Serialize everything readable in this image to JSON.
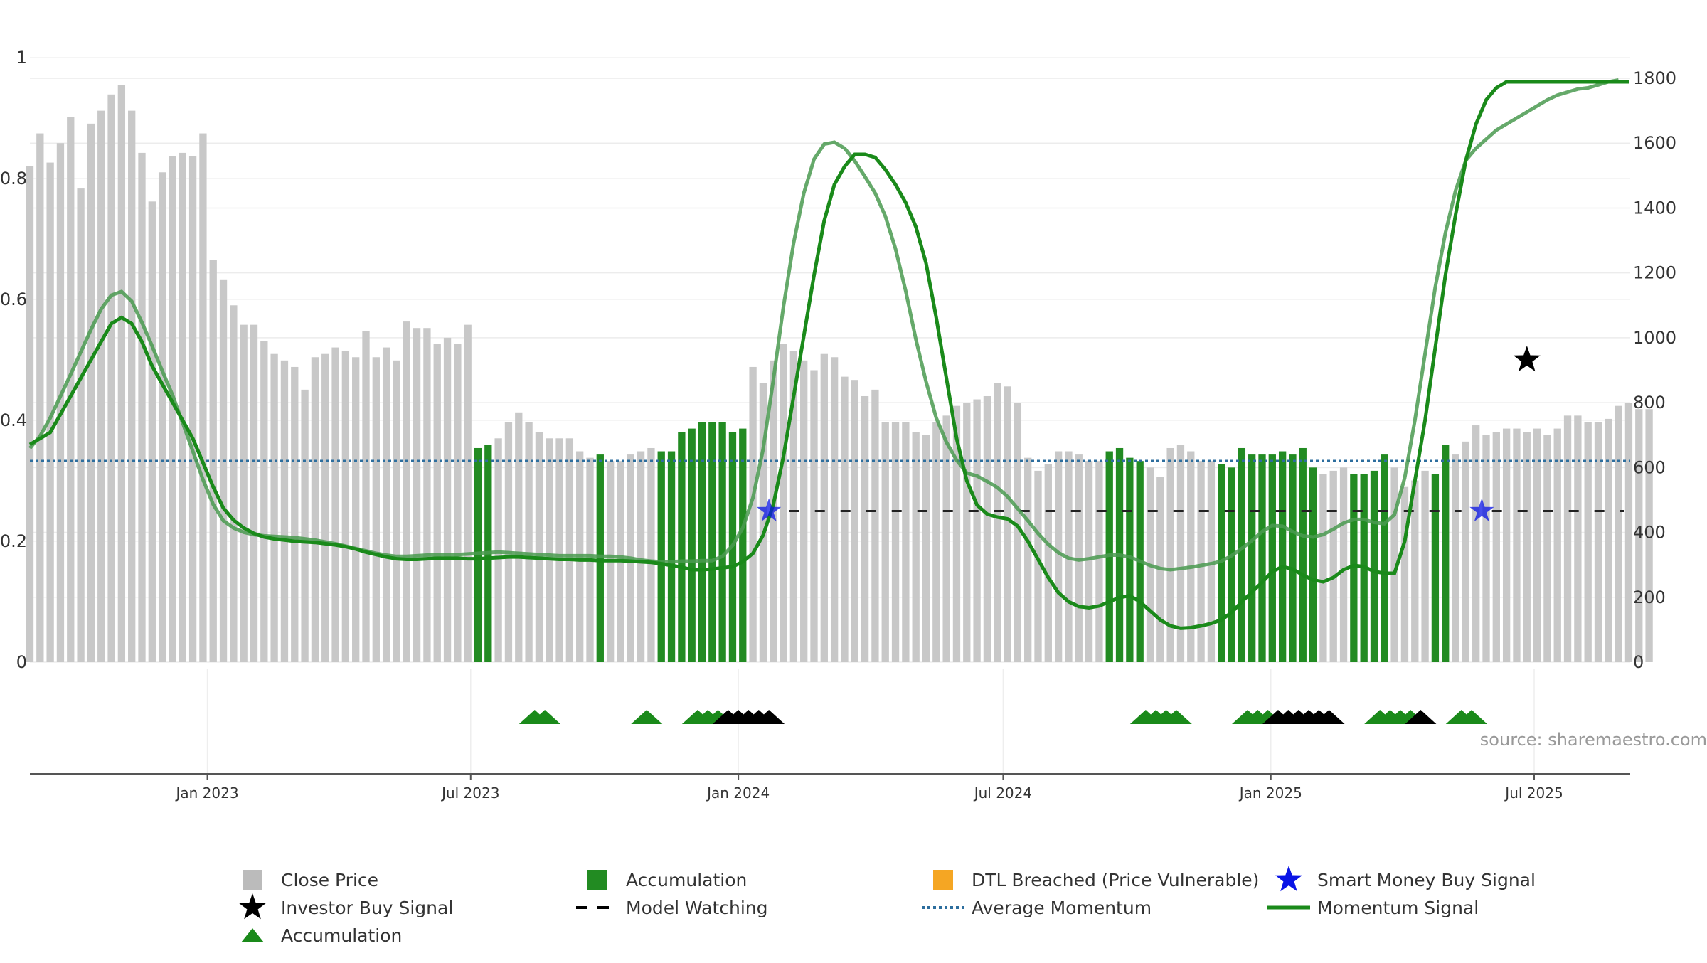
{
  "chart_data": {
    "type": "bar",
    "source_note": "source: sharemaestro.com",
    "left_axis": {
      "ticks": [
        0,
        0.2,
        0.4,
        0.6,
        0.8,
        1
      ],
      "labels": [
        "0",
        "0.2",
        "0.4",
        "0.6",
        "0.8",
        "1"
      ],
      "range": [
        0,
        1
      ]
    },
    "right_axis": {
      "ticks": [
        0,
        200,
        400,
        600,
        800,
        1000,
        1200,
        1400,
        1600,
        1800
      ],
      "labels": [
        "0",
        "200",
        "400",
        "600",
        "800",
        "1000",
        "1200",
        "1400",
        "1600",
        "1800"
      ],
      "range": [
        0,
        1800
      ]
    },
    "x_axis": {
      "start": "2022-09-01",
      "end": "2025-09-05",
      "ticks": [
        {
          "date": "2023-01-01",
          "label": "Jan 2023"
        },
        {
          "date": "2023-07-01",
          "label": "Jul 2023"
        },
        {
          "date": "2024-01-01",
          "label": "Jan 2024"
        },
        {
          "date": "2024-07-01",
          "label": "Jul 2024"
        },
        {
          "date": "2025-01-01",
          "label": "Jan 2025"
        },
        {
          "date": "2025-07-01",
          "label": "Jul 2025"
        }
      ]
    },
    "grid": true,
    "average_momentum": 0.333,
    "model_watching_level": 0.25,
    "weekly": {
      "start_date": "2022-09-01",
      "close": [
        1530,
        1630,
        1540,
        1600,
        1680,
        1460,
        1660,
        1700,
        1750,
        1780,
        1700,
        1570,
        1420,
        1510,
        1560,
        1570,
        1560,
        1630,
        1240,
        1180,
        1100,
        1040,
        1040,
        990,
        950,
        930,
        910,
        840,
        940,
        950,
        970,
        960,
        940,
        1020,
        940,
        970,
        930,
        1050,
        1030,
        1030,
        980,
        1000,
        980,
        1040,
        660,
        670,
        690,
        740,
        770,
        740,
        710,
        690,
        690,
        690,
        650,
        630,
        640,
        620,
        620,
        640,
        650,
        660,
        650,
        650,
        710,
        720,
        740,
        740,
        740,
        710,
        720,
        910,
        860,
        930,
        980,
        960,
        930,
        900,
        950,
        940,
        880,
        870,
        820,
        840,
        740,
        740,
        740,
        710,
        700,
        740,
        760,
        790,
        800,
        810,
        820,
        860,
        850,
        800,
        630,
        590,
        610,
        650,
        650,
        640,
        620,
        620,
        650,
        660,
        630,
        620,
        600,
        570,
        660,
        670,
        650,
        620,
        620,
        610,
        600,
        660,
        640,
        640,
        640,
        650,
        640,
        660,
        600,
        580,
        590,
        600,
        580,
        580,
        590,
        640,
        600,
        540,
        560,
        590,
        580,
        670,
        640,
        680,
        730,
        700,
        710,
        720,
        720,
        710,
        720,
        700,
        720,
        760,
        760,
        740,
        740,
        750,
        790,
        800,
        780,
        780
      ],
      "accumulation_weeks": [
        44,
        45,
        56,
        62,
        63,
        64,
        65,
        66,
        67,
        68,
        69,
        70,
        106,
        107,
        108,
        109,
        117,
        118,
        119,
        120,
        121,
        122,
        123,
        124,
        125,
        126,
        130,
        131,
        132,
        133,
        138,
        139
      ],
      "momentum": [
        0.36,
        0.37,
        0.38,
        0.41,
        0.44,
        0.47,
        0.5,
        0.53,
        0.56,
        0.57,
        0.56,
        0.53,
        0.49,
        0.46,
        0.43,
        0.4,
        0.37,
        0.33,
        0.29,
        0.255,
        0.235,
        0.222,
        0.213,
        0.207,
        0.204,
        0.202,
        0.2,
        0.199,
        0.198,
        0.196,
        0.194,
        0.191,
        0.187,
        0.182,
        0.178,
        0.174,
        0.171,
        0.17,
        0.17,
        0.171,
        0.172,
        0.172,
        0.172,
        0.171,
        0.171,
        0.172,
        0.173,
        0.174,
        0.174,
        0.173,
        0.172,
        0.171,
        0.17,
        0.17,
        0.169,
        0.169,
        0.168,
        0.168,
        0.168,
        0.167,
        0.166,
        0.165,
        0.163,
        0.16,
        0.157,
        0.153,
        0.153,
        0.154,
        0.156,
        0.158,
        0.166,
        0.18,
        0.21,
        0.26,
        0.34,
        0.44,
        0.54,
        0.64,
        0.73,
        0.79,
        0.82,
        0.84,
        0.84,
        0.835,
        0.815,
        0.79,
        0.76,
        0.72,
        0.66,
        0.57,
        0.47,
        0.37,
        0.3,
        0.26,
        0.245,
        0.24,
        0.237,
        0.225,
        0.2,
        0.17,
        0.14,
        0.115,
        0.1,
        0.092,
        0.09,
        0.093,
        0.1,
        0.107,
        0.11,
        0.1,
        0.085,
        0.07,
        0.06,
        0.056,
        0.057,
        0.06,
        0.064,
        0.07,
        0.082,
        0.1,
        0.116,
        0.132,
        0.15,
        0.158,
        0.154,
        0.144,
        0.136,
        0.133,
        0.14,
        0.153,
        0.16,
        0.158,
        0.15,
        0.147,
        0.147,
        0.2,
        0.3,
        0.4,
        0.52,
        0.64,
        0.74,
        0.83,
        0.89,
        0.93,
        0.95,
        0.96,
        0.96,
        0.96,
        0.96,
        0.96,
        0.96,
        0.96,
        0.96,
        0.96,
        0.96,
        0.96,
        0.96,
        0.96
      ],
      "momentum_signal": [
        0.354,
        0.374,
        0.404,
        0.44,
        0.476,
        0.513,
        0.55,
        0.584,
        0.607,
        0.613,
        0.597,
        0.562,
        0.523,
        0.482,
        0.442,
        0.396,
        0.349,
        0.302,
        0.261,
        0.234,
        0.222,
        0.215,
        0.211,
        0.209,
        0.208,
        0.207,
        0.206,
        0.204,
        0.202,
        0.199,
        0.196,
        0.192,
        0.188,
        0.184,
        0.18,
        0.177,
        0.175,
        0.175,
        0.176,
        0.177,
        0.178,
        0.178,
        0.178,
        0.179,
        0.18,
        0.181,
        0.182,
        0.181,
        0.18,
        0.179,
        0.178,
        0.177,
        0.176,
        0.176,
        0.176,
        0.176,
        0.175,
        0.175,
        0.174,
        0.172,
        0.169,
        0.167,
        0.166,
        0.166,
        0.167,
        0.167,
        0.168,
        0.168,
        0.175,
        0.193,
        0.222,
        0.272,
        0.352,
        0.466,
        0.588,
        0.694,
        0.776,
        0.832,
        0.857,
        0.86,
        0.85,
        0.829,
        0.803,
        0.776,
        0.738,
        0.684,
        0.614,
        0.534,
        0.464,
        0.404,
        0.364,
        0.334,
        0.313,
        0.308,
        0.299,
        0.289,
        0.274,
        0.254,
        0.234,
        0.213,
        0.195,
        0.181,
        0.172,
        0.169,
        0.171,
        0.174,
        0.177,
        0.177,
        0.174,
        0.167,
        0.16,
        0.155,
        0.153,
        0.155,
        0.157,
        0.16,
        0.163,
        0.167,
        0.176,
        0.188,
        0.201,
        0.216,
        0.226,
        0.225,
        0.216,
        0.209,
        0.207,
        0.211,
        0.22,
        0.23,
        0.236,
        0.236,
        0.231,
        0.229,
        0.244,
        0.305,
        0.4,
        0.51,
        0.62,
        0.71,
        0.78,
        0.83,
        0.85,
        0.865,
        0.88,
        0.89,
        0.9,
        0.91,
        0.92,
        0.93,
        0.938,
        0.943,
        0.948,
        0.95,
        0.955,
        0.96,
        0.963
      ]
    },
    "smart_money_buy_signals": [
      {
        "date": "2024-01-22",
        "value": 0.25
      },
      {
        "date": "2025-05-26",
        "value": 0.25
      }
    ],
    "investor_buy_signals": [
      {
        "date": "2025-06-26",
        "value": 0.5
      }
    ],
    "model_watching_ranges": [
      {
        "start": "2024-02-05",
        "end": "2025-05-12"
      },
      {
        "start": "2025-06-02",
        "end": "2025-09-01"
      }
    ],
    "marker_row": [
      {
        "date": "2023-08-14",
        "color": "green"
      },
      {
        "date": "2023-08-21",
        "color": "green"
      },
      {
        "date": "2023-10-30",
        "color": "green"
      },
      {
        "date": "2023-12-04",
        "color": "green"
      },
      {
        "date": "2023-12-11",
        "color": "green"
      },
      {
        "date": "2023-12-18",
        "color": "green"
      },
      {
        "date": "2023-12-25",
        "color": "black"
      },
      {
        "date": "2024-01-01",
        "color": "black"
      },
      {
        "date": "2024-01-08",
        "color": "black"
      },
      {
        "date": "2024-01-15",
        "color": "black"
      },
      {
        "date": "2024-01-22",
        "color": "black"
      },
      {
        "date": "2024-10-07",
        "color": "green"
      },
      {
        "date": "2024-10-14",
        "color": "green"
      },
      {
        "date": "2024-10-21",
        "color": "green"
      },
      {
        "date": "2024-10-28",
        "color": "green"
      },
      {
        "date": "2024-12-16",
        "color": "green"
      },
      {
        "date": "2024-12-23",
        "color": "green"
      },
      {
        "date": "2024-12-30",
        "color": "green"
      },
      {
        "date": "2025-01-06",
        "color": "black"
      },
      {
        "date": "2025-01-13",
        "color": "black"
      },
      {
        "date": "2025-01-20",
        "color": "black"
      },
      {
        "date": "2025-01-27",
        "color": "black"
      },
      {
        "date": "2025-02-03",
        "color": "black"
      },
      {
        "date": "2025-02-10",
        "color": "black"
      },
      {
        "date": "2025-03-17",
        "color": "green"
      },
      {
        "date": "2025-03-24",
        "color": "green"
      },
      {
        "date": "2025-03-31",
        "color": "green"
      },
      {
        "date": "2025-04-07",
        "color": "green"
      },
      {
        "date": "2025-04-14",
        "color": "black"
      },
      {
        "date": "2025-05-12",
        "color": "green"
      },
      {
        "date": "2025-05-19",
        "color": "green"
      }
    ],
    "legend": [
      {
        "label": "Close Price",
        "icon": "square",
        "color": "#bbbbbb"
      },
      {
        "label": "Accumulation",
        "icon": "square",
        "color": "#228b22"
      },
      {
        "label": "DTL Breached (Price Vulnerable)",
        "icon": "square",
        "color": "#f5a623"
      },
      {
        "label": "Smart Money Buy Signal",
        "icon": "star",
        "color": "#0a14e6"
      },
      {
        "label": "Investor Buy Signal",
        "icon": "star",
        "color": "#000000"
      },
      {
        "label": "Model Watching",
        "icon": "dash",
        "color": "#000000"
      },
      {
        "label": "Average Momentum",
        "icon": "dotted-line",
        "color": "#2d6e9e"
      },
      {
        "label": "Momentum Signal",
        "icon": "line",
        "color": "#1a8a1a"
      },
      {
        "label": "Accumulation",
        "icon": "triangle",
        "color": "#1a8a1a"
      }
    ],
    "colors": {
      "close": "#c8c8c8",
      "accumulation": "#228b22",
      "momentum_dark": "#1a8a1a",
      "momentum_faded": "#4a9a50",
      "average": "#2d6e9e",
      "smart_money": "#0a14e6",
      "investor": "#000000",
      "source": "#999999"
    }
  }
}
